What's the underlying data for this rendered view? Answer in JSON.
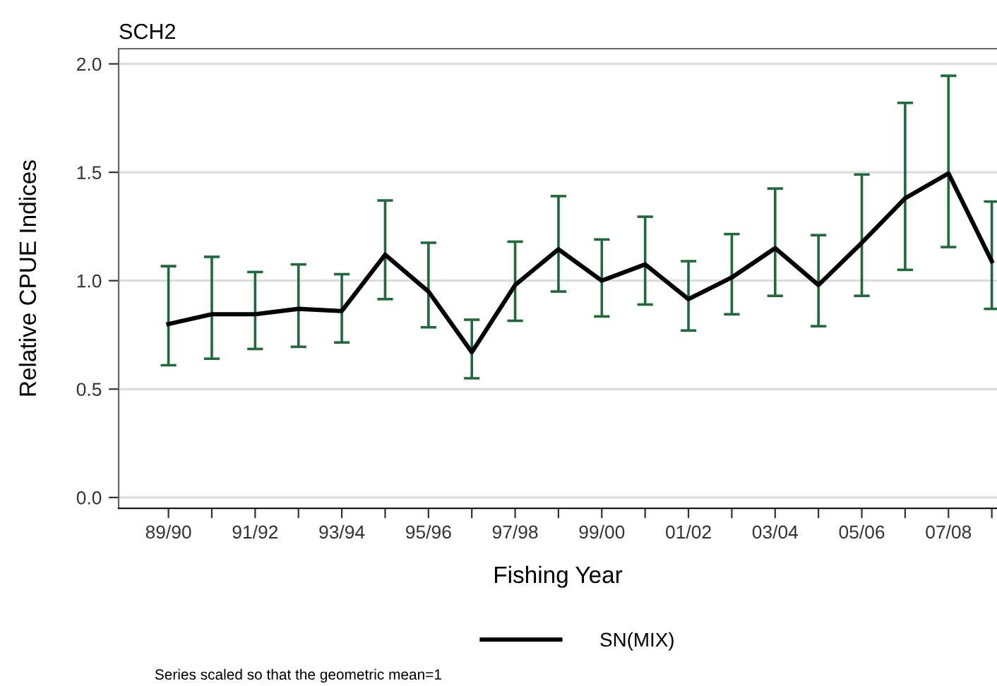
{
  "chart_data": {
    "type": "line",
    "title": "SCH2",
    "xlabel": "Fishing Year",
    "ylabel": "Relative CPUE Indices",
    "categories": [
      "89/90",
      null,
      "91/92",
      null,
      "93/94",
      null,
      "95/96",
      null,
      "97/98",
      null,
      "99/00",
      null,
      "01/02",
      null,
      "03/04",
      null,
      "05/06",
      null,
      "07/08",
      null
    ],
    "series": [
      {
        "name": "SN(MIX)",
        "color": "#000000",
        "values": [
          0.8,
          0.845,
          0.845,
          0.87,
          0.86,
          1.12,
          0.95,
          0.67,
          0.98,
          1.145,
          1.0,
          1.075,
          0.915,
          1.015,
          1.15,
          0.98,
          1.175,
          1.38,
          1.495,
          1.09
        ],
        "errors": [
          [
            0.61,
            1.067
          ],
          [
            0.64,
            1.11
          ],
          [
            0.685,
            1.04
          ],
          [
            0.695,
            1.075
          ],
          [
            0.715,
            1.03
          ],
          [
            0.915,
            1.37
          ],
          [
            0.785,
            1.175
          ],
          [
            0.55,
            0.82
          ],
          [
            0.815,
            1.18
          ],
          [
            0.95,
            1.39
          ],
          [
            0.835,
            1.19
          ],
          [
            0.89,
            1.295
          ],
          [
            0.77,
            1.09
          ],
          [
            0.845,
            1.215
          ],
          [
            0.93,
            1.425
          ],
          [
            0.79,
            1.21
          ],
          [
            0.93,
            1.49
          ],
          [
            1.05,
            1.82
          ],
          [
            1.155,
            1.945
          ],
          [
            0.87,
            1.365
          ]
        ]
      }
    ],
    "ylim": [
      -0.05,
      2.07
    ],
    "yticks": [
      {
        "value": 0,
        "label": "0.0"
      },
      {
        "value": 0.5,
        "label": "0.5"
      },
      {
        "value": 1,
        "label": "1.0"
      },
      {
        "value": 1.5,
        "label": "1.5"
      },
      {
        "value": 2,
        "label": "2.0"
      }
    ],
    "grid": "y",
    "legend": "bottom",
    "marker": "none",
    "line_style": "solid",
    "annotations": [
      "Series scaled so that the geometric mean=1"
    ]
  }
}
